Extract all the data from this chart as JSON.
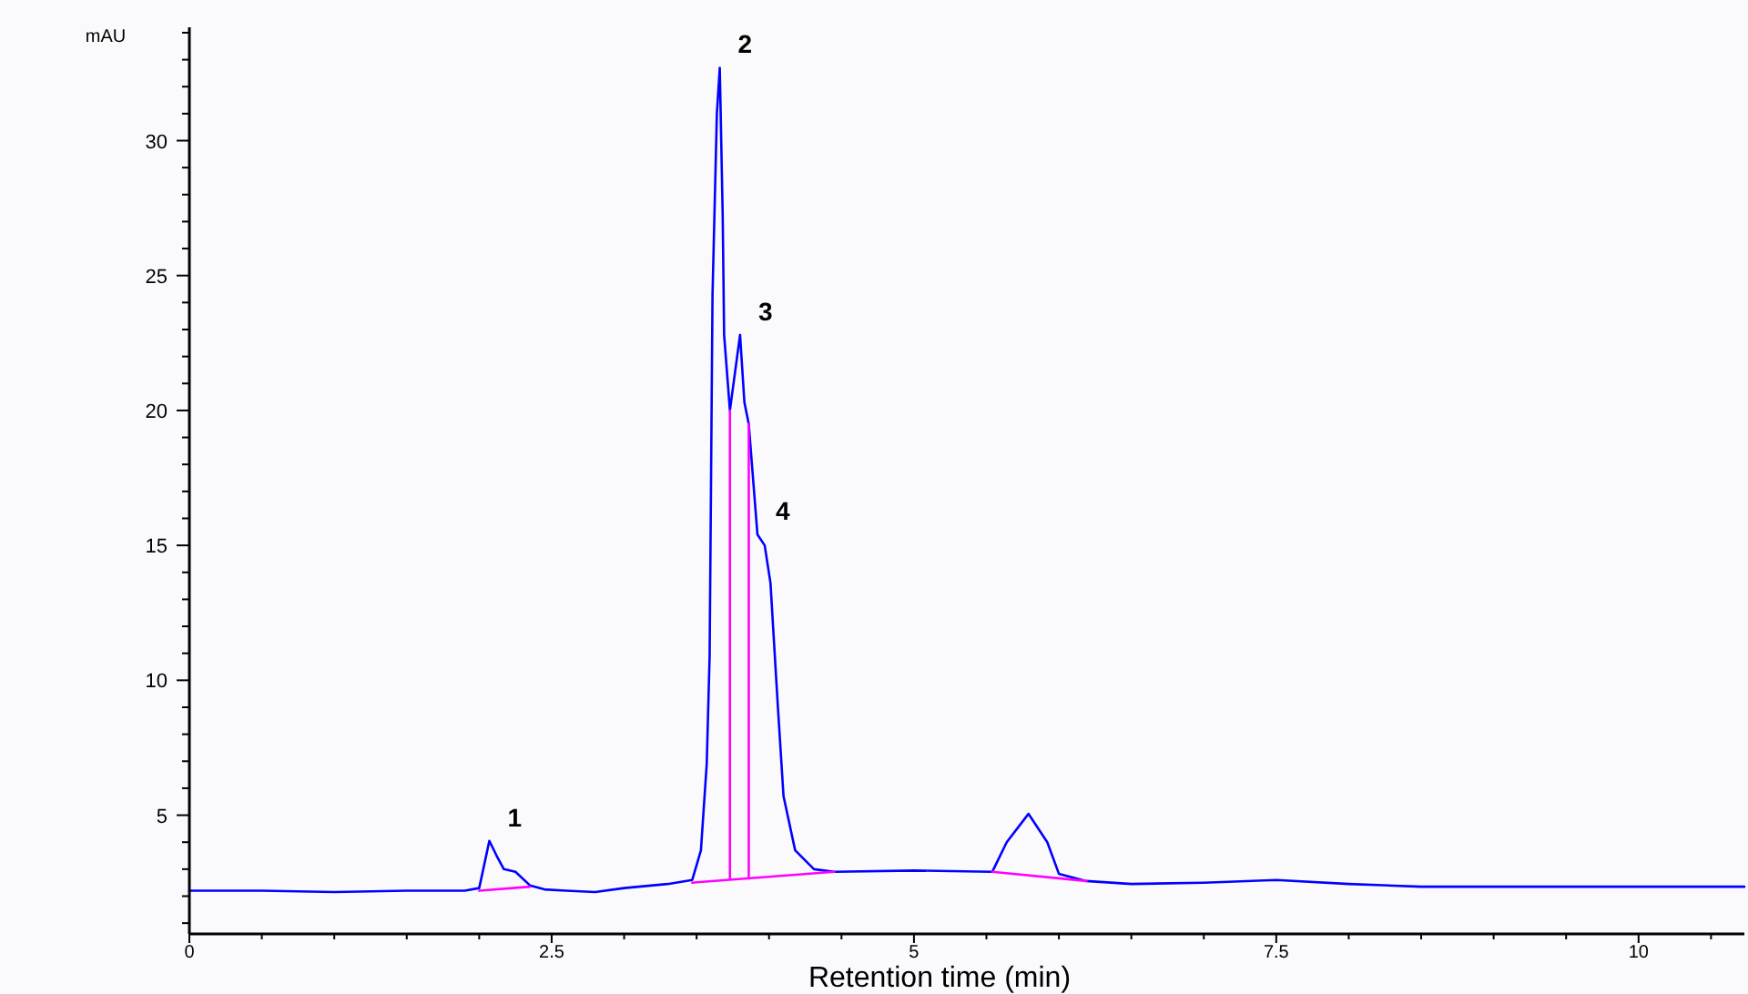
{
  "chart_data": {
    "type": "line",
    "xlabel": "Retention time (min)",
    "ylabel": "mAU",
    "xlim": [
      0,
      10.73
    ],
    "ylim": [
      0.6,
      34.2
    ],
    "xticks": [
      0,
      {
        "value": 0.5,
        "label": null
      },
      {
        "value": 1,
        "label": null
      },
      {
        "value": 1.5,
        "label": null
      },
      {
        "value": 2,
        "label": null
      },
      2.5,
      {
        "value": 3,
        "label": null
      },
      {
        "value": 3.5,
        "label": null
      },
      {
        "value": 4,
        "label": null
      },
      {
        "value": 4.5,
        "label": null
      },
      5,
      {
        "value": 5.5,
        "label": null
      },
      {
        "value": 6,
        "label": null
      },
      {
        "value": 6.5,
        "label": null
      },
      {
        "value": 7,
        "label": null
      },
      7.5,
      {
        "value": 8,
        "label": null
      },
      {
        "value": 8.5,
        "label": null
      },
      {
        "value": 9,
        "label": null
      },
      {
        "value": 9.5,
        "label": null
      },
      10,
      {
        "value": 10.5,
        "label": null
      }
    ],
    "yticks": [
      {
        "value": 1,
        "label": null
      },
      {
        "value": 2,
        "label": null
      },
      {
        "value": 3,
        "label": null
      },
      {
        "value": 4,
        "label": null
      },
      5,
      {
        "value": 6,
        "label": null
      },
      {
        "value": 7,
        "label": null
      },
      {
        "value": 8,
        "label": null
      },
      {
        "value": 9,
        "label": null
      },
      10,
      {
        "value": 11,
        "label": null
      },
      {
        "value": 12,
        "label": null
      },
      {
        "value": 13,
        "label": null
      },
      {
        "value": 14,
        "label": null
      },
      15,
      {
        "value": 16,
        "label": null
      },
      {
        "value": 17,
        "label": null
      },
      {
        "value": 18,
        "label": null
      },
      {
        "value": 19,
        "label": null
      },
      20,
      {
        "value": 21,
        "label": null
      },
      {
        "value": 22,
        "label": null
      },
      {
        "value": 23,
        "label": null
      },
      {
        "value": 24,
        "label": null
      },
      25,
      {
        "value": 26,
        "label": null
      },
      {
        "value": 27,
        "label": null
      },
      {
        "value": 28,
        "label": null
      },
      {
        "value": 29,
        "label": null
      },
      30,
      {
        "value": 31,
        "label": null
      },
      {
        "value": 32,
        "label": null
      },
      {
        "value": 33,
        "label": null
      },
      {
        "value": 34,
        "label": null
      }
    ],
    "grid": false,
    "marker": "none",
    "line_style": "solid",
    "series": [
      {
        "color": "#0000ff",
        "x": [
          0,
          0.5,
          1,
          1.5,
          1.9,
          2,
          2.07,
          2.12,
          2.17,
          2.25,
          2.35,
          2.45,
          2.6,
          2.8,
          3,
          3.3,
          3.47,
          3.53,
          3.57,
          3.59,
          3.61,
          3.64,
          3.66,
          3.68,
          3.69,
          3.73,
          3.8,
          3.83,
          3.86,
          3.92,
          3.97,
          4.01,
          4.06,
          4.1,
          4.18,
          4.31,
          4.45,
          5,
          5.54,
          5.64,
          5.79,
          5.92,
          6,
          6.19,
          6.5,
          7,
          7.5,
          8,
          8.5,
          9,
          9.5,
          10,
          10.73
        ],
        "values": [
          2.2,
          2.2,
          2.15,
          2.2,
          2.2,
          2.3,
          4.05,
          3.5,
          3,
          2.9,
          2.4,
          2.25,
          2.2,
          2.15,
          2.3,
          2.45,
          2.6,
          3.7,
          6.9,
          10.9,
          24.3,
          31,
          32.7,
          27.3,
          22.8,
          20,
          22.8,
          20.3,
          19.5,
          15.4,
          15,
          13.6,
          9.1,
          5.7,
          3.7,
          3,
          2.9,
          2.95,
          2.9,
          4,
          5.05,
          4,
          2.83,
          2.56,
          2.45,
          2.5,
          2.6,
          2.45,
          2.35,
          2.35,
          2.35,
          2.35,
          2.35
        ]
      },
      {
        "color": "#ff00ff",
        "x": [
          2,
          2.35
        ],
        "values": [
          2.2,
          2.35
        ]
      },
      {
        "color": "#ff00ff",
        "x": [
          3.47,
          4.45
        ],
        "values": [
          2.5,
          2.9
        ]
      },
      {
        "color": "#ff00ff",
        "x": [
          3.73,
          3.73
        ],
        "values": [
          2.65,
          20
        ]
      },
      {
        "color": "#ff00ff",
        "x": [
          3.86,
          3.86
        ],
        "values": [
          2.7,
          19.5
        ]
      },
      {
        "color": "#ff00ff",
        "x": [
          5.54,
          6.19
        ],
        "values": [
          2.9,
          2.56
        ]
      }
    ],
    "annotations": [
      {
        "text": "1",
        "x": 2.07,
        "y": 4.05
      },
      {
        "text": "2",
        "x": 3.66,
        "y": 32.7
      },
      {
        "text": "3",
        "x": 3.8,
        "y": 22.8
      },
      {
        "text": "4",
        "x": 3.92,
        "y": 15.4
      }
    ]
  }
}
